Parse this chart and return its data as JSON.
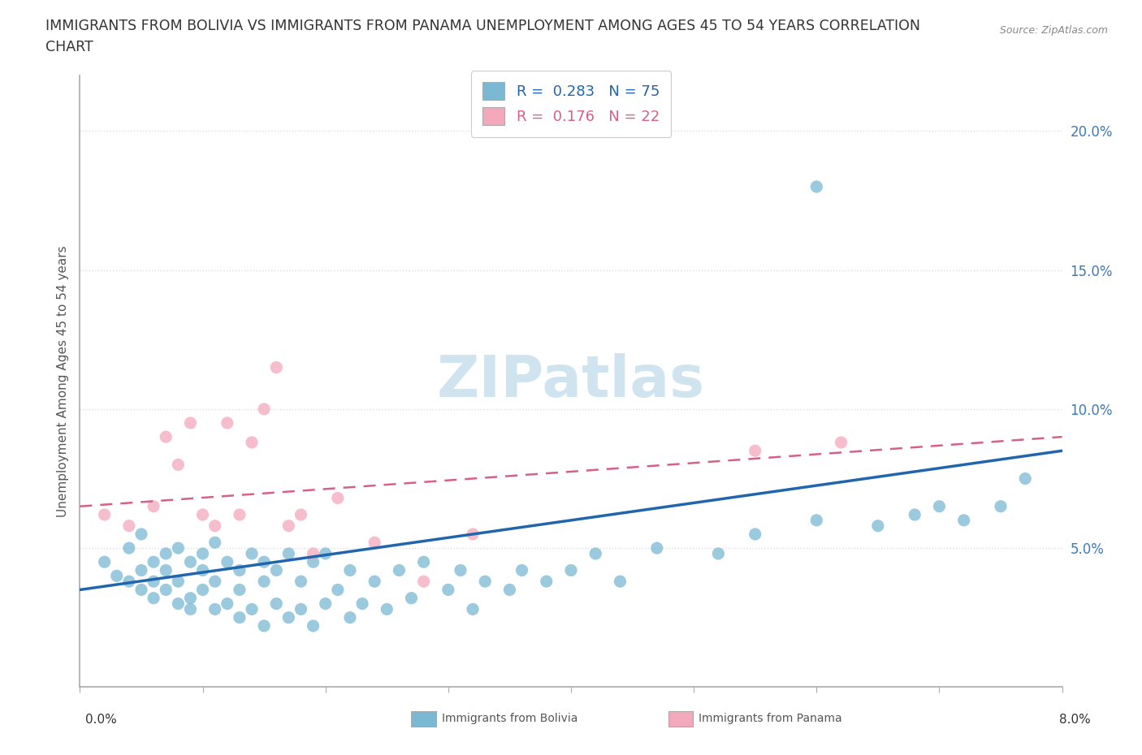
{
  "title_line1": "IMMIGRANTS FROM BOLIVIA VS IMMIGRANTS FROM PANAMA UNEMPLOYMENT AMONG AGES 45 TO 54 YEARS CORRELATION",
  "title_line2": "CHART",
  "source": "Source: ZipAtlas.com",
  "ylabel": "Unemployment Among Ages 45 to 54 years",
  "ytick_labels": [
    "5.0%",
    "10.0%",
    "15.0%",
    "20.0%"
  ],
  "ytick_values": [
    0.05,
    0.1,
    0.15,
    0.2
  ],
  "xlim": [
    0.0,
    0.08
  ],
  "ylim": [
    0.0,
    0.22
  ],
  "bolivia_color": "#7zbcd4",
  "panama_color": "#f4a8bb",
  "bolivia_line_color": "#2166ac",
  "panama_line_color": "#d6608a",
  "watermark_color": "#d0e4f0",
  "legend_R_bolivia": "0.283",
  "legend_N_bolivia": "75",
  "legend_R_panama": "0.176",
  "legend_N_panama": "22",
  "bolivia_x": [
    0.002,
    0.003,
    0.004,
    0.004,
    0.005,
    0.005,
    0.005,
    0.006,
    0.006,
    0.006,
    0.007,
    0.007,
    0.007,
    0.008,
    0.008,
    0.008,
    0.009,
    0.009,
    0.009,
    0.01,
    0.01,
    0.01,
    0.011,
    0.011,
    0.011,
    0.012,
    0.012,
    0.013,
    0.013,
    0.013,
    0.014,
    0.014,
    0.015,
    0.015,
    0.015,
    0.016,
    0.016,
    0.017,
    0.017,
    0.018,
    0.018,
    0.019,
    0.019,
    0.02,
    0.02,
    0.021,
    0.022,
    0.022,
    0.023,
    0.024,
    0.025,
    0.026,
    0.027,
    0.028,
    0.03,
    0.031,
    0.032,
    0.033,
    0.035,
    0.036,
    0.038,
    0.04,
    0.042,
    0.044,
    0.047,
    0.052,
    0.055,
    0.06,
    0.065,
    0.068,
    0.07,
    0.072,
    0.075,
    0.077,
    0.06
  ],
  "bolivia_y": [
    0.045,
    0.04,
    0.05,
    0.038,
    0.042,
    0.035,
    0.055,
    0.038,
    0.045,
    0.032,
    0.048,
    0.035,
    0.042,
    0.03,
    0.05,
    0.038,
    0.032,
    0.045,
    0.028,
    0.048,
    0.035,
    0.042,
    0.028,
    0.038,
    0.052,
    0.03,
    0.045,
    0.025,
    0.042,
    0.035,
    0.028,
    0.048,
    0.022,
    0.038,
    0.045,
    0.03,
    0.042,
    0.025,
    0.048,
    0.028,
    0.038,
    0.022,
    0.045,
    0.03,
    0.048,
    0.035,
    0.025,
    0.042,
    0.03,
    0.038,
    0.028,
    0.042,
    0.032,
    0.045,
    0.035,
    0.042,
    0.028,
    0.038,
    0.035,
    0.042,
    0.038,
    0.042,
    0.048,
    0.038,
    0.05,
    0.048,
    0.055,
    0.06,
    0.058,
    0.062,
    0.065,
    0.06,
    0.065,
    0.075,
    0.18
  ],
  "panama_x": [
    0.002,
    0.004,
    0.006,
    0.007,
    0.008,
    0.009,
    0.01,
    0.011,
    0.012,
    0.013,
    0.014,
    0.015,
    0.016,
    0.017,
    0.018,
    0.019,
    0.021,
    0.024,
    0.028,
    0.032,
    0.055,
    0.062
  ],
  "panama_y": [
    0.062,
    0.058,
    0.065,
    0.09,
    0.08,
    0.095,
    0.062,
    0.058,
    0.095,
    0.062,
    0.088,
    0.1,
    0.115,
    0.058,
    0.062,
    0.048,
    0.068,
    0.052,
    0.038,
    0.055,
    0.085,
    0.088
  ],
  "background_color": "#ffffff",
  "grid_color": "#dddddd",
  "xtick_count": 9
}
